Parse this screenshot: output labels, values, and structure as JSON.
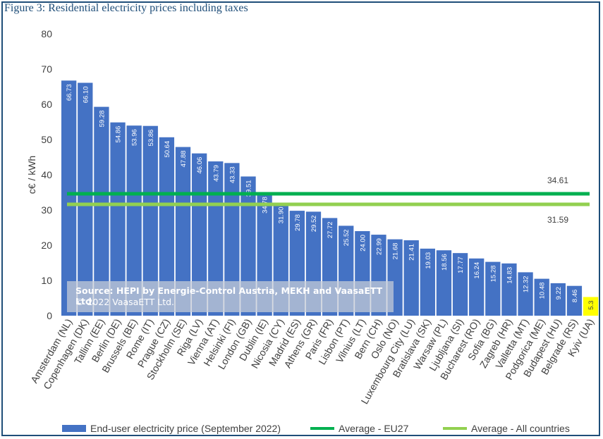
{
  "figure_title": "Figure 3: Residential electricity prices including taxes",
  "source": {
    "line1": "Source: HEPI by Energie-Control Austria, MEKH and VaasaETT Ltd.",
    "line2": "© 2022 VaasaETT Ltd."
  },
  "colors": {
    "bar": "#4472c4",
    "highlight_bar": "#ffff00",
    "avg_eu27": "#00b050",
    "avg_all": "#92d050",
    "frame": "#1f4e79"
  },
  "chart_data": {
    "type": "bar",
    "title": "Figure 3: Residential electricity prices including taxes",
    "xlabel": "",
    "ylabel": "c€ / kWh",
    "ylim": [
      0,
      80
    ],
    "yticks": [
      0,
      10,
      20,
      30,
      40,
      50,
      60,
      70,
      80
    ],
    "grid": false,
    "legend_position": "bottom",
    "categories": [
      "Amsterdam (NL)",
      "Copenhagen (DK)",
      "Tallinn (EE)",
      "Berlin (DE)",
      "Brussels (BE)",
      "Rome (IT)",
      "Prague (CZ)",
      "Stockholm (SE)",
      "Riga (LV)",
      "Vienna (AT)",
      "Helsinki (FI)",
      "London (GB)",
      "Dublin (IE)",
      "Nicosia (CY)",
      "Madrid (ES)",
      "Athens (GR)",
      "Paris (FR)",
      "Lisbon (PT)",
      "Vilnius (LT)",
      "Bern (CH)",
      "Oslo (NO)",
      "Luxembourg City (LU)",
      "Bratislava (SK)",
      "Warsaw (PL)",
      "Ljubljana (SI)",
      "Bucharest (RO)",
      "Sofia (BG)",
      "Zagreb (HR)",
      "Valletta (MT)",
      "Podgorica (ME)",
      "Budapest (HU)",
      "Belgrade (RS)",
      "Kyiv (UA)"
    ],
    "series": [
      {
        "name": "End-user electricity price (September 2022)",
        "values": [
          66.73,
          66.1,
          59.28,
          54.86,
          53.96,
          53.86,
          50.64,
          47.88,
          46.06,
          43.79,
          43.33,
          39.51,
          34.78,
          31.9,
          29.78,
          29.52,
          27.72,
          25.52,
          24.0,
          22.99,
          21.68,
          21.41,
          19.03,
          18.56,
          17.77,
          16.24,
          15.28,
          14.83,
          12.32,
          10.48,
          9.22,
          8.46,
          5.3
        ],
        "labels": [
          "66.73",
          "66.10",
          "59.28",
          "54.86",
          "53.96",
          "53.86",
          "50.64",
          "47.88",
          "46.06",
          "43.79",
          "43.33",
          "39.51",
          "34.78",
          "31.90",
          "29.78",
          "29.52",
          "27.72",
          "25.52",
          "24.00",
          "22.99",
          "21.68",
          "21.41",
          "19.03",
          "18.56",
          "17.77",
          "16.24",
          "15.28",
          "14.83",
          "12.32",
          "10.48",
          "9.22",
          "8.46",
          "5.3"
        ]
      }
    ],
    "reference_lines": [
      {
        "name": "Average - EU27",
        "value": 34.61,
        "label": "34.61"
      },
      {
        "name": "Average - All countries",
        "value": 31.59,
        "label": "31.59"
      }
    ]
  }
}
